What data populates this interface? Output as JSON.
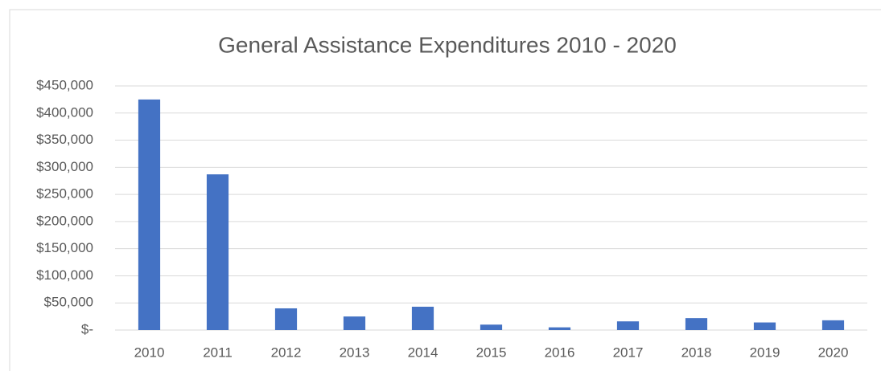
{
  "chart_data": {
    "type": "bar",
    "title": "General Assistance Expenditures 2010 - 2020",
    "categories": [
      "2010",
      "2011",
      "2012",
      "2013",
      "2014",
      "2015",
      "2016",
      "2017",
      "2018",
      "2019",
      "2020"
    ],
    "values": [
      425000,
      287000,
      40000,
      25000,
      43000,
      10000,
      5000,
      16000,
      22000,
      14000,
      18000
    ],
    "color": "#4472c4",
    "ylim": [
      0,
      450000
    ],
    "yticks": [
      {
        "value": 0,
        "label": "$-"
      },
      {
        "value": 50000,
        "label": "$50,000"
      },
      {
        "value": 100000,
        "label": "$100,000"
      },
      {
        "value": 150000,
        "label": "$150,000"
      },
      {
        "value": 200000,
        "label": "$200,000"
      },
      {
        "value": 250000,
        "label": "$250,000"
      },
      {
        "value": 300000,
        "label": "$300,000"
      },
      {
        "value": 350000,
        "label": "$350,000"
      },
      {
        "value": 400000,
        "label": "$400,000"
      },
      {
        "value": 450000,
        "label": "$450,000"
      }
    ],
    "grid": true
  }
}
